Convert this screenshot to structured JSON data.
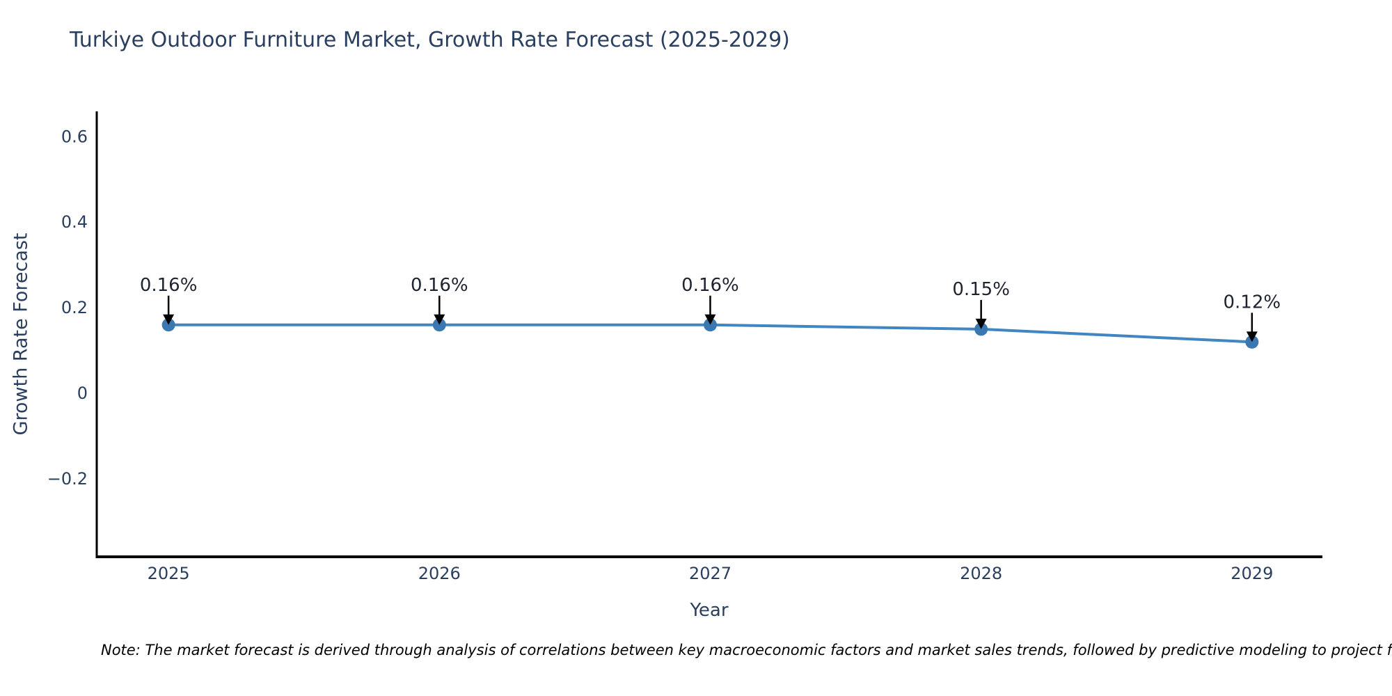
{
  "title": "Turkiye Outdoor Furniture Market, Growth Rate Forecast (2025-2029)",
  "note": "Note: The market forecast is derived through analysis of correlations between key macroeconomic factors and market sales trends, followed by predictive modeling to project future sales",
  "chart_data": {
    "type": "line",
    "title": "Turkiye Outdoor Furniture Market, Growth Rate Forecast (2025-2029)",
    "xlabel": "Year",
    "ylabel": "Growth Rate Forecast",
    "x": [
      2025,
      2026,
      2027,
      2028,
      2029
    ],
    "values": [
      0.16,
      0.16,
      0.16,
      0.15,
      0.12
    ],
    "point_labels": [
      "0.16%",
      "0.16%",
      "0.16%",
      "0.15%",
      "0.12%"
    ],
    "xticks": [
      2025,
      2026,
      2027,
      2028,
      2029
    ],
    "xtick_labels": [
      "2025",
      "2026",
      "2027",
      "2028",
      "2029"
    ],
    "yticks": [
      0.6,
      0.4,
      0.2,
      0,
      -0.2
    ],
    "ytick_labels": [
      "0.6",
      "0.4",
      "0.2",
      "0",
      "−0.2"
    ],
    "xlim": [
      2024.735,
      2029.26
    ],
    "ylim": [
      -0.382,
      0.659
    ],
    "grid": false,
    "legend": "none",
    "colors": {
      "line": "#4186c0",
      "marker": "#3a78b2",
      "axis": "#000000",
      "arrow": "#000000",
      "tick_text": "#2a3f5f",
      "annotation_text": "#1d2430"
    }
  }
}
